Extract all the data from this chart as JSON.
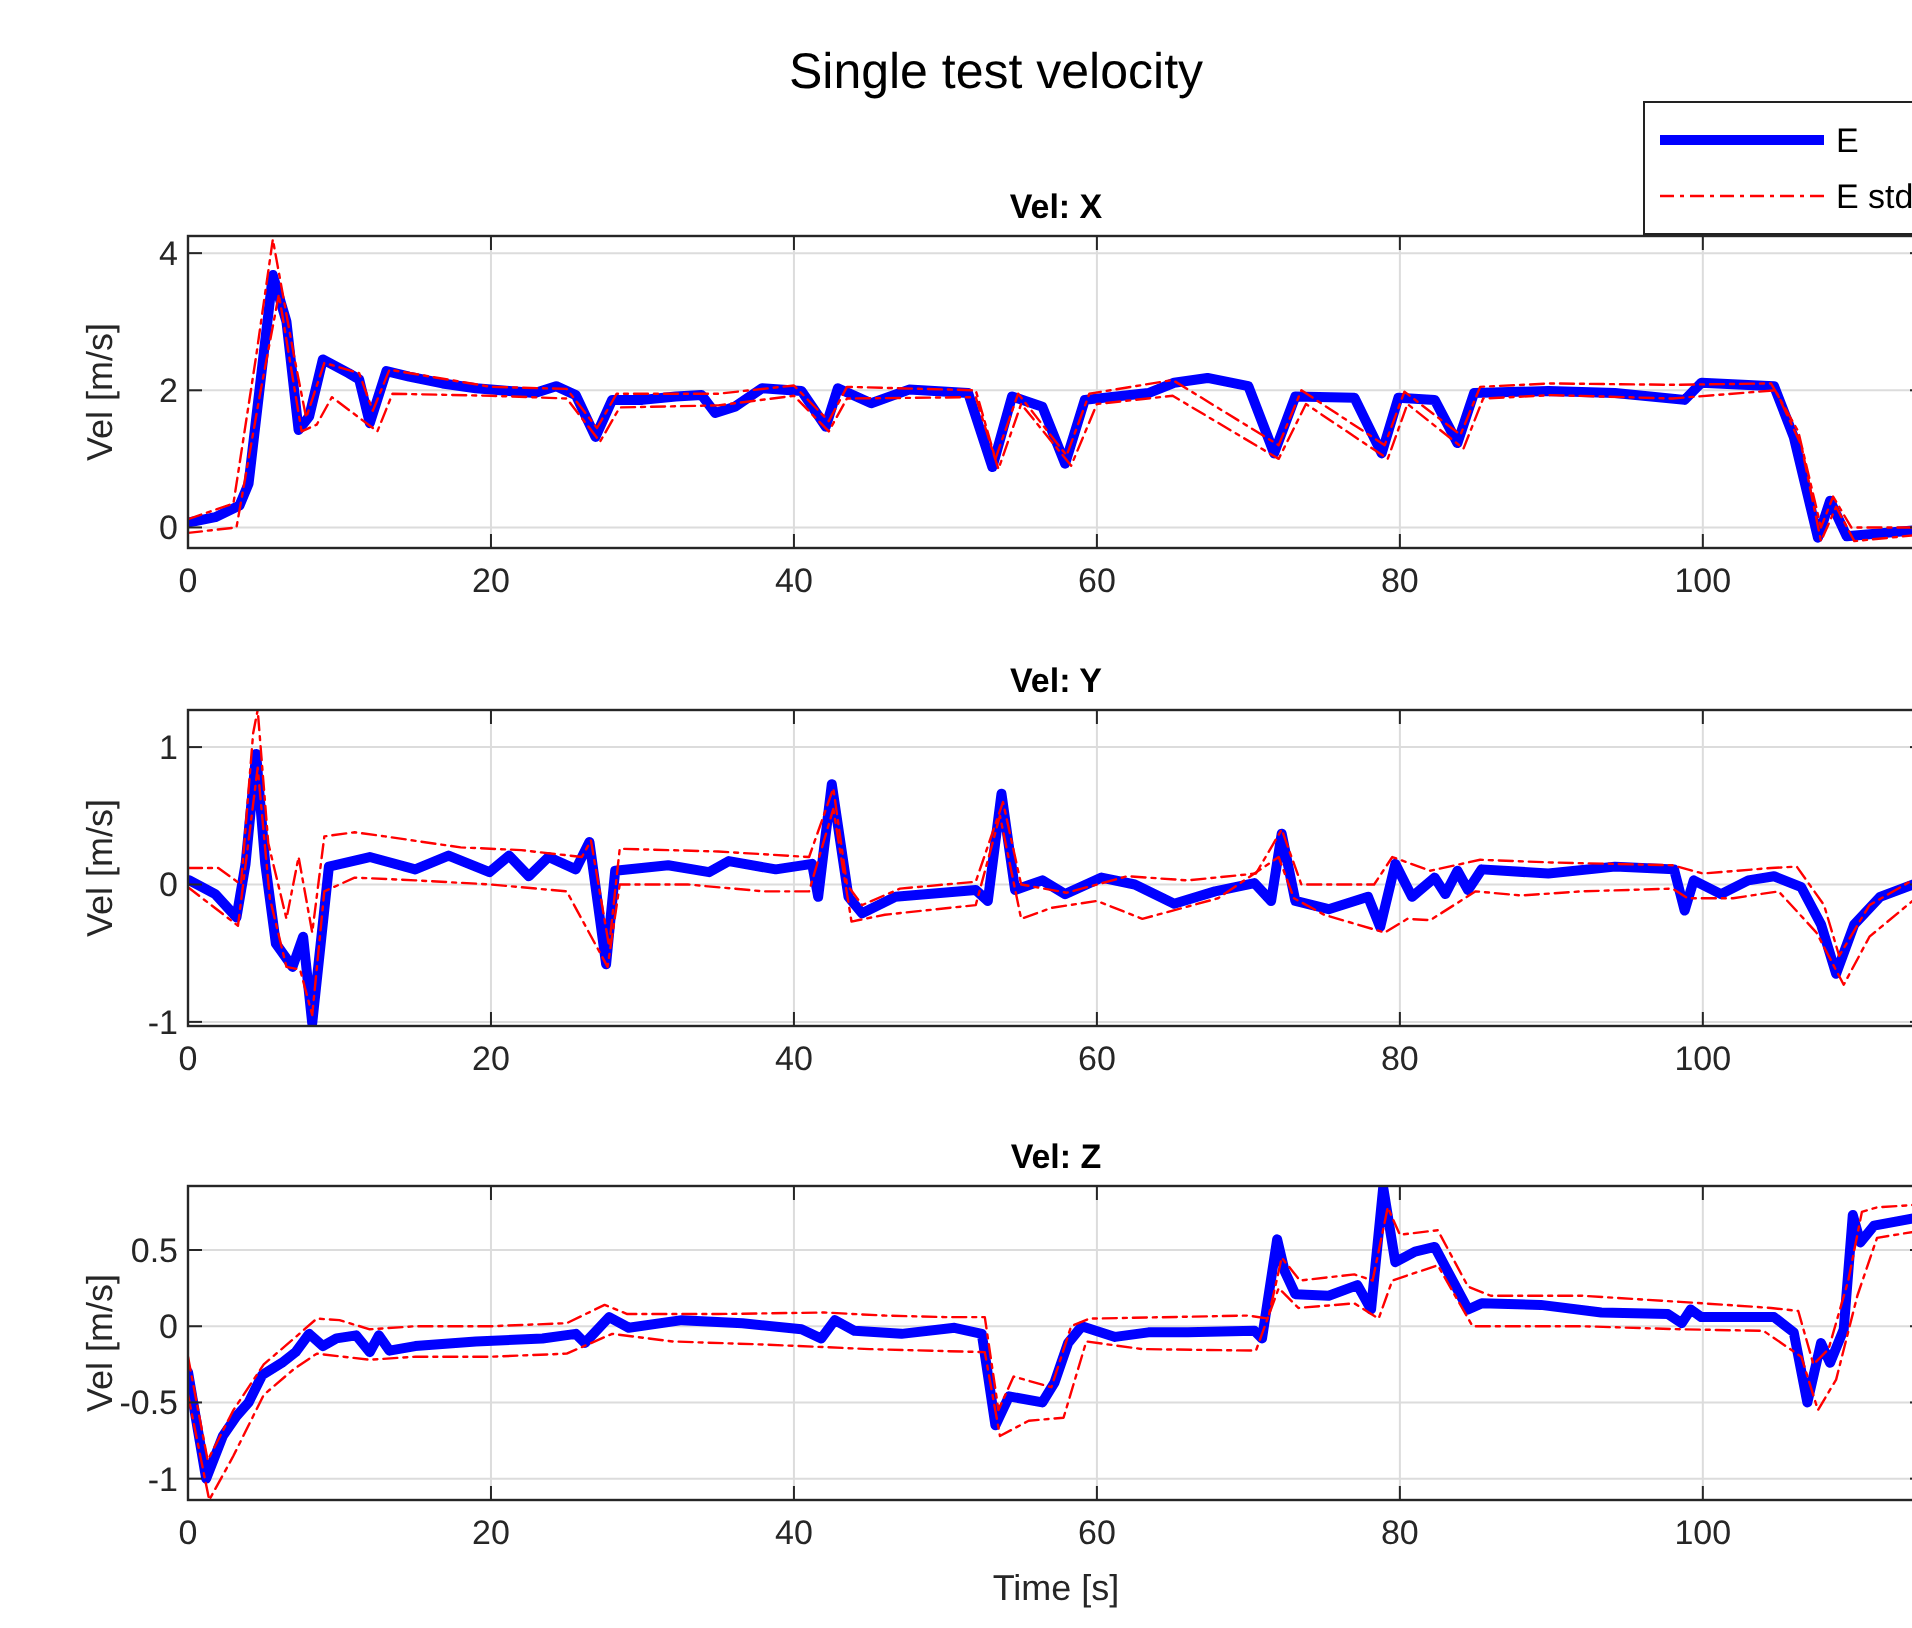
{
  "chart_data": [
    {
      "type": "line",
      "title": "Single test velocity",
      "subtitle": "Vel: X",
      "ylabel": "Vel [m/s]",
      "xlim": [
        0,
        114.6
      ],
      "xticks": [
        0,
        20,
        40,
        60,
        80,
        100
      ],
      "ylim": [
        -0.3,
        4.25
      ],
      "yticks": [
        0,
        2,
        4
      ],
      "grid": true,
      "legend": "top right",
      "series": [
        {
          "name": "E",
          "color": "#0000ff",
          "line_style": "solid",
          "x": [
            0,
            1.8,
            3.4,
            4,
            5.6,
            6.5,
            7.3,
            8,
            8.9,
            10.6,
            11.3,
            12,
            13.1,
            14.6,
            16.8,
            19,
            21.2,
            22.9,
            24.3,
            25.6,
            26.9,
            28,
            30,
            32.2,
            33.9,
            34.8,
            36.1,
            37.9,
            40.5,
            42.1,
            42.9,
            45.1,
            47.6,
            51.5,
            53.1,
            54.4,
            56.4,
            57.9,
            59.2,
            63.4,
            65.1,
            67.3,
            70,
            71.7,
            73.1,
            77,
            78.8,
            79.9,
            82.3,
            83.8,
            84.9,
            89.8,
            94.2,
            98.8,
            99.9,
            104.7,
            106,
            107.6,
            108.4,
            109.5,
            114.6
          ],
          "values": [
            0.07,
            0.15,
            0.32,
            0.64,
            3.68,
            3.0,
            1.42,
            1.62,
            2.45,
            2.25,
            2.16,
            1.52,
            2.28,
            2.2,
            2.1,
            2.03,
            1.99,
            1.96,
            2.06,
            1.93,
            1.32,
            1.86,
            1.86,
            1.91,
            1.93,
            1.67,
            1.76,
            2.03,
            1.99,
            1.47,
            2.03,
            1.81,
            2.01,
            1.96,
            0.88,
            1.91,
            1.76,
            0.93,
            1.86,
            1.96,
            2.11,
            2.18,
            2.06,
            1.08,
            1.91,
            1.89,
            1.08,
            1.89,
            1.86,
            1.23,
            1.96,
            1.99,
            1.96,
            1.86,
            2.11,
            2.06,
            1.32,
            -0.15,
            0.39,
            -0.13,
            -0.03
          ]
        },
        {
          "name": "E std",
          "color": "#ff0000",
          "line_style": "dashdot",
          "x": [
            0,
            3,
            4.5,
            5.6,
            7,
            7.8,
            9,
            11.3,
            12.2,
            13.3,
            20,
            25,
            27,
            28.3,
            35,
            40,
            42.3,
            43.5,
            52,
            53.3,
            54.8,
            58,
            59.5,
            65,
            72,
            73.5,
            79,
            80.3,
            84,
            85.3,
            90,
            98,
            104.5,
            106.3,
            107.8,
            108.6,
            109.8,
            114.6
          ],
          "values": [
            0.12,
            0.35,
            2.5,
            4.2,
            2.5,
            1.6,
            2.4,
            2.25,
            1.7,
            2.3,
            2.05,
            2.02,
            1.45,
            1.95,
            1.95,
            2.07,
            1.55,
            2.05,
            2.0,
            1.0,
            1.95,
            1.05,
            1.95,
            2.15,
            1.2,
            2.0,
            1.2,
            1.98,
            1.35,
            2.05,
            2.1,
            2.08,
            2.1,
            1.4,
            0.0,
            0.45,
            0.0,
            0.0
          ]
        },
        {
          "color": "#ff0000",
          "line_style": "dashdot",
          "x": [
            0,
            3.2,
            4.8,
            6,
            7.5,
            8.5,
            9.5,
            12.5,
            13.5,
            20,
            25,
            27.2,
            28.5,
            35,
            40,
            42.3,
            43.5,
            52,
            53.5,
            55,
            58.3,
            60,
            65,
            72,
            73.8,
            79.2,
            80.5,
            84.2,
            85.5,
            90,
            98,
            104.8,
            106.5,
            107.8,
            108.8,
            110,
            114.6
          ],
          "values": [
            -0.08,
            0.0,
            2.0,
            3.4,
            1.4,
            1.5,
            1.9,
            1.4,
            1.95,
            1.92,
            1.88,
            1.25,
            1.75,
            1.78,
            1.92,
            1.4,
            1.88,
            1.9,
            0.85,
            1.8,
            0.9,
            1.8,
            1.92,
            1.0,
            1.8,
            1.0,
            1.8,
            1.15,
            1.88,
            1.93,
            1.88,
            2.0,
            1.2,
            -0.2,
            0.3,
            -0.2,
            -0.1
          ]
        }
      ]
    },
    {
      "type": "line",
      "title": "Vel: Y",
      "ylabel": "Vel [m/s]",
      "xlim": [
        0,
        114.6
      ],
      "xticks": [
        0,
        20,
        40,
        60,
        80,
        100
      ],
      "ylim": [
        -1.03,
        1.27
      ],
      "yticks": [
        -1,
        0,
        1
      ],
      "grid": true,
      "series": [
        {
          "color": "#0000ff",
          "line_style": "solid",
          "x": [
            0.1,
            1.8,
            3.2,
            3.8,
            4.5,
            5.1,
            5.8,
            6.9,
            7.6,
            8.2,
            9.3,
            12,
            15,
            17.2,
            19.9,
            21.2,
            22.5,
            23.8,
            25.6,
            26.5,
            27.6,
            28.2,
            31.7,
            34.4,
            35.7,
            38.8,
            41.2,
            41.6,
            42.5,
            43.6,
            44.5,
            46.7,
            52,
            52.8,
            53.7,
            54.6,
            56.4,
            57.9,
            60.3,
            62.5,
            65.1,
            67.8,
            70.4,
            71.5,
            72.2,
            73.1,
            75.3,
            77.9,
            78.7,
            79.7,
            80.8,
            82.3,
            83,
            83.8,
            84.5,
            85.4,
            89.8,
            94.2,
            98.1,
            98.8,
            99.4,
            101.2,
            103,
            104.7,
            106.5,
            107.8,
            108.8,
            110,
            111.7,
            114.6
          ],
          "values": [
            0.03,
            -0.07,
            -0.24,
            0.15,
            0.95,
            0.15,
            -0.43,
            -0.6,
            -0.38,
            -1.01,
            0.13,
            0.2,
            0.11,
            0.21,
            0.09,
            0.21,
            0.06,
            0.2,
            0.11,
            0.31,
            -0.58,
            0.1,
            0.14,
            0.09,
            0.17,
            0.11,
            0.15,
            -0.09,
            0.73,
            -0.09,
            -0.21,
            -0.09,
            -0.04,
            -0.12,
            0.66,
            -0.04,
            0.03,
            -0.07,
            0.05,
            0,
            -0.14,
            -0.05,
            0.01,
            -0.12,
            0.37,
            -0.12,
            -0.18,
            -0.09,
            -0.31,
            0.15,
            -0.09,
            0.05,
            -0.07,
            0.1,
            -0.04,
            0.11,
            0.08,
            0.13,
            0.11,
            -0.19,
            0.03,
            -0.07,
            0.03,
            0.06,
            -0.02,
            -0.29,
            -0.65,
            -0.29,
            -0.09,
            0.03
          ]
        },
        {
          "color": "#ff0000",
          "line_style": "dashdot",
          "x": [
            0,
            2,
            3.5,
            4.3,
            4.6,
            5.3,
            6.5,
            7.3,
            8.2,
            9,
            11,
            13,
            18,
            22,
            26,
            26.6,
            27.8,
            28.5,
            35,
            41,
            42.6,
            43.5,
            44.5,
            47,
            52,
            53.8,
            55,
            58,
            62,
            66,
            70.5,
            72.2,
            73.5,
            76,
            78.3,
            79.5,
            82,
            85.3,
            90,
            98,
            100,
            104.5,
            106.2,
            108,
            109,
            111,
            114.6
          ],
          "values": [
            0.12,
            0.12,
            0.0,
            1.1,
            1.27,
            0.3,
            -0.25,
            0.2,
            -0.35,
            0.35,
            0.38,
            0.35,
            0.27,
            0.25,
            0.2,
            0.32,
            -0.45,
            0.26,
            0.24,
            0.2,
            0.7,
            0.0,
            -0.15,
            -0.03,
            0.02,
            0.6,
            0.0,
            -0.06,
            0.06,
            0.03,
            0.08,
            0.4,
            0.0,
            0.0,
            0.0,
            0.2,
            0.1,
            0.18,
            0.16,
            0.14,
            0.08,
            0.12,
            0.13,
            -0.15,
            -0.52,
            -0.15,
            0.08
          ]
        },
        {
          "color": "#ff0000",
          "line_style": "dashdot",
          "x": [
            0,
            3.3,
            4.6,
            5.4,
            6.5,
            7.4,
            8.2,
            9,
            11,
            15,
            20,
            25,
            27.7,
            28.5,
            33,
            38,
            41,
            42.6,
            43.8,
            46,
            52,
            53.6,
            55,
            57,
            60,
            63,
            68,
            72,
            73,
            75,
            79,
            80.5,
            82,
            85,
            88,
            92,
            98,
            99,
            102,
            105,
            107.5,
            109.3,
            111,
            114.6
          ],
          "values": [
            -0.02,
            -0.3,
            0.85,
            -0.1,
            -0.6,
            -0.62,
            -0.95,
            -0.05,
            0.05,
            0.03,
            0.0,
            -0.05,
            -0.6,
            0.0,
            0.0,
            -0.05,
            -0.05,
            0.55,
            -0.27,
            -0.22,
            -0.15,
            0.5,
            -0.25,
            -0.17,
            -0.12,
            -0.25,
            -0.1,
            0.2,
            -0.1,
            -0.22,
            -0.35,
            -0.25,
            -0.26,
            -0.05,
            -0.08,
            -0.05,
            -0.03,
            -0.1,
            -0.1,
            -0.05,
            -0.35,
            -0.73,
            -0.38,
            -0.05
          ]
        }
      ]
    },
    {
      "type": "line",
      "title": "Vel: Z",
      "xlabel": "Time [s]",
      "ylabel": "Vel [m/s]",
      "xlim": [
        0,
        114.6
      ],
      "xticks": [
        0,
        20,
        40,
        60,
        80,
        100
      ],
      "ylim": [
        -1.14,
        0.92
      ],
      "yticks": [
        -1,
        -0.5,
        0,
        0.5
      ],
      "grid": true,
      "series": [
        {
          "color": "#0000ff",
          "line_style": "solid",
          "x": [
            0,
            1.2,
            2.3,
            3.2,
            4,
            4.9,
            6.2,
            7.1,
            8,
            8.9,
            9.8,
            11.1,
            12,
            12.6,
            13.3,
            15,
            19,
            23.4,
            25.6,
            26.2,
            27.8,
            29.1,
            32.6,
            36.6,
            40.5,
            41.8,
            42.7,
            44,
            47.1,
            50.6,
            52.4,
            53.3,
            54.2,
            56.4,
            57.2,
            58.1,
            59,
            61.2,
            63.4,
            66,
            70.4,
            70.9,
            71.9,
            72.4,
            73.1,
            75.3,
            77.2,
            78.1,
            78.9,
            79.7,
            81,
            82.3,
            84.5,
            85.4,
            89.3,
            93.3,
            97.7,
            98.6,
            99.2,
            99.9,
            104.7,
            106,
            106.9,
            107.8,
            108.4,
            109.3,
            109.9,
            110.4,
            111.3,
            114.6
          ],
          "values": [
            -0.3,
            -1.0,
            -0.72,
            -0.59,
            -0.5,
            -0.32,
            -0.24,
            -0.17,
            -0.05,
            -0.13,
            -0.08,
            -0.06,
            -0.17,
            -0.06,
            -0.16,
            -0.13,
            -0.1,
            -0.08,
            -0.05,
            -0.11,
            0.06,
            -0.01,
            0.04,
            0.02,
            -0.02,
            -0.08,
            0.04,
            -0.03,
            -0.05,
            -0.01,
            -0.05,
            -0.65,
            -0.46,
            -0.5,
            -0.37,
            -0.11,
            0,
            -0.07,
            -0.04,
            -0.04,
            -0.03,
            -0.08,
            0.57,
            0.36,
            0.21,
            0.2,
            0.27,
            0.11,
            0.91,
            0.42,
            0.49,
            0.52,
            0.11,
            0.15,
            0.14,
            0.09,
            0.08,
            0.02,
            0.11,
            0.06,
            0.06,
            -0.04,
            -0.5,
            -0.11,
            -0.24,
            -0.02,
            0.73,
            0.55,
            0.66,
            0.72
          ]
        },
        {
          "color": "#ff0000",
          "line_style": "dashdot",
          "x": [
            0,
            1.3,
            3,
            5,
            7,
            8.5,
            10,
            12,
            15,
            20,
            25,
            27.5,
            29,
            35,
            42,
            46,
            50,
            52.6,
            53.5,
            54.5,
            57,
            58.3,
            59.5,
            70,
            71.3,
            72.2,
            73.4,
            77,
            78.2,
            79.2,
            80,
            82.5,
            84.5,
            86,
            92,
            98.5,
            104.5,
            106.3,
            107.3,
            108.3,
            109.6,
            110.5,
            111.5,
            114.6
          ],
          "values": [
            -0.2,
            -0.88,
            -0.55,
            -0.25,
            -0.08,
            0.05,
            0.04,
            -0.02,
            0.0,
            0.0,
            0.02,
            0.14,
            0.08,
            0.08,
            0.09,
            0.07,
            0.06,
            0.06,
            -0.55,
            -0.33,
            -0.4,
            0.0,
            0.05,
            0.07,
            0.05,
            0.45,
            0.3,
            0.34,
            0.3,
            0.78,
            0.6,
            0.63,
            0.26,
            0.2,
            0.2,
            0.16,
            0.12,
            0.1,
            -0.25,
            -0.15,
            0.3,
            0.75,
            0.78,
            0.8
          ]
        },
        {
          "color": "#ff0000",
          "line_style": "dashdot",
          "x": [
            0,
            1.4,
            3,
            5,
            7,
            8.5,
            12,
            15,
            20,
            25,
            28,
            32,
            38,
            45,
            52.6,
            53.6,
            55.5,
            57.8,
            59.3,
            63,
            70.5,
            72,
            73.3,
            77,
            78.6,
            79.5,
            81,
            82.5,
            84.8,
            86,
            92,
            98.5,
            104,
            106.5,
            107.6,
            108.8,
            110.2,
            111.5,
            114.6
          ],
          "values": [
            -0.45,
            -1.14,
            -0.85,
            -0.45,
            -0.28,
            -0.18,
            -0.22,
            -0.2,
            -0.2,
            -0.18,
            -0.05,
            -0.1,
            -0.12,
            -0.15,
            -0.17,
            -0.72,
            -0.62,
            -0.6,
            -0.1,
            -0.15,
            -0.16,
            0.25,
            0.12,
            0.15,
            0.05,
            0.3,
            0.35,
            0.4,
            0.0,
            0.0,
            0.0,
            -0.02,
            -0.03,
            -0.2,
            -0.55,
            -0.35,
            0.2,
            0.58,
            0.63
          ]
        }
      ]
    }
  ]
}
